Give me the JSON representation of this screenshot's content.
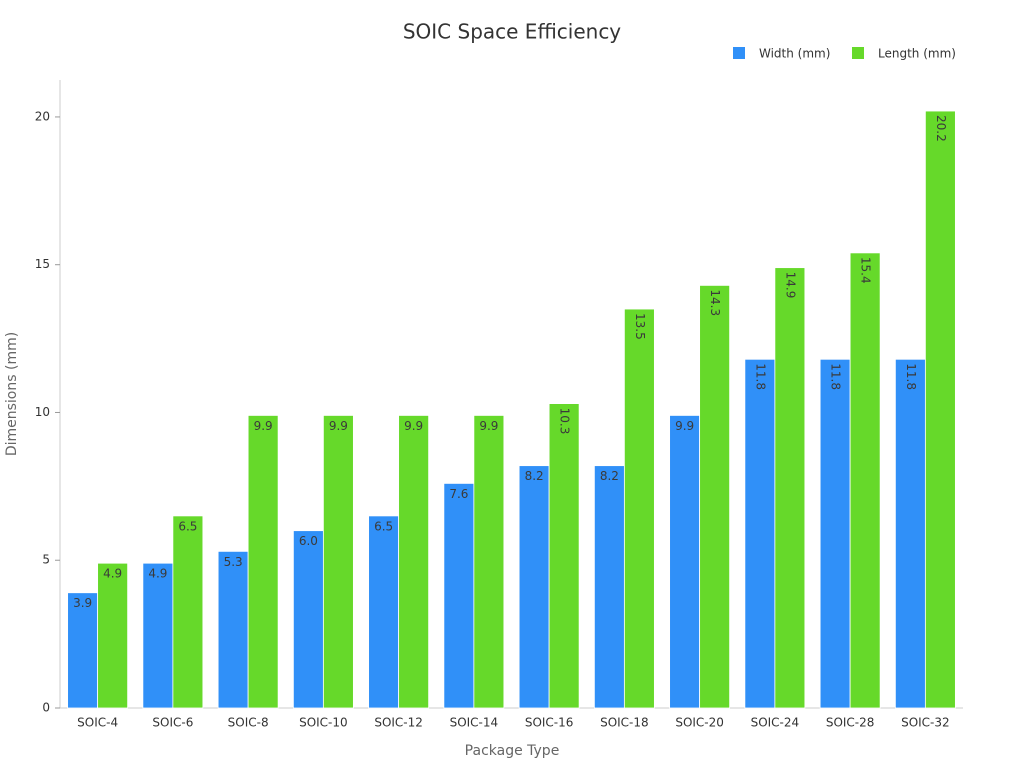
{
  "chart_data": {
    "type": "bar",
    "title": "SOIC Space Efficiency",
    "x_label": "Package Type",
    "y_label": "Dimensions (mm)",
    "categories": [
      "SOIC-4",
      "SOIC-6",
      "SOIC-8",
      "SOIC-10",
      "SOIC-12",
      "SOIC-14",
      "SOIC-16",
      "SOIC-18",
      "SOIC-20",
      "SOIC-24",
      "SOIC-28",
      "SOIC-32"
    ],
    "series": [
      {
        "name": "Width (mm)",
        "color": "#3090f8",
        "values": [
          3.9,
          4.9,
          5.3,
          6.0,
          6.5,
          7.6,
          8.2,
          8.2,
          9.9,
          11.8,
          11.8,
          11.8
        ],
        "value_labels": [
          "3.9",
          "4.9",
          "5.3",
          "6.0",
          "6.5",
          "7.6",
          "8.2",
          "8.2",
          "9.9",
          "11.8",
          "11.8",
          "11.8"
        ]
      },
      {
        "name": "Length (mm)",
        "color": "#66d92a",
        "values": [
          4.9,
          6.5,
          9.9,
          9.9,
          9.9,
          9.9,
          10.3,
          13.5,
          14.3,
          14.9,
          15.4,
          20.2
        ],
        "value_labels": [
          "4.9",
          "6.5",
          "9.9",
          "9.9",
          "9.9",
          "9.9",
          "10.3",
          "13.5",
          "14.3",
          "14.9",
          "15.4",
          "20.2"
        ]
      }
    ],
    "ylim": [
      0,
      21.25
    ],
    "yticks": [
      0,
      5,
      10,
      15,
      20
    ],
    "legend": "top-right"
  }
}
